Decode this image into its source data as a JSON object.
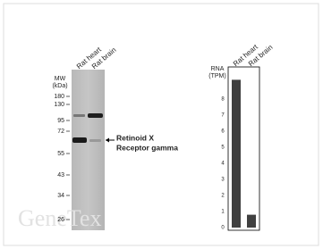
{
  "blot": {
    "lanes": [
      "Rat heart",
      "Rat brain"
    ],
    "mw_title": "MW",
    "mw_unit": "(kDa)",
    "mw_markers": [
      180,
      130,
      95,
      72,
      55,
      43,
      34,
      26
    ],
    "target_line1": "Retinoid X",
    "target_line2": "Receptor gamma"
  },
  "watermark": "GeneTex",
  "chart_data": {
    "type": "bar",
    "y_label_line1": "RNA",
    "y_label_line2": "(TPM)",
    "categories": [
      "Rat heart",
      "Rat brain"
    ],
    "values": [
      9.2,
      0.8
    ],
    "color": "#404040",
    "ylim": [
      0,
      10
    ],
    "yticks": [
      0,
      1,
      2,
      3,
      4,
      5,
      6,
      7,
      8
    ]
  }
}
